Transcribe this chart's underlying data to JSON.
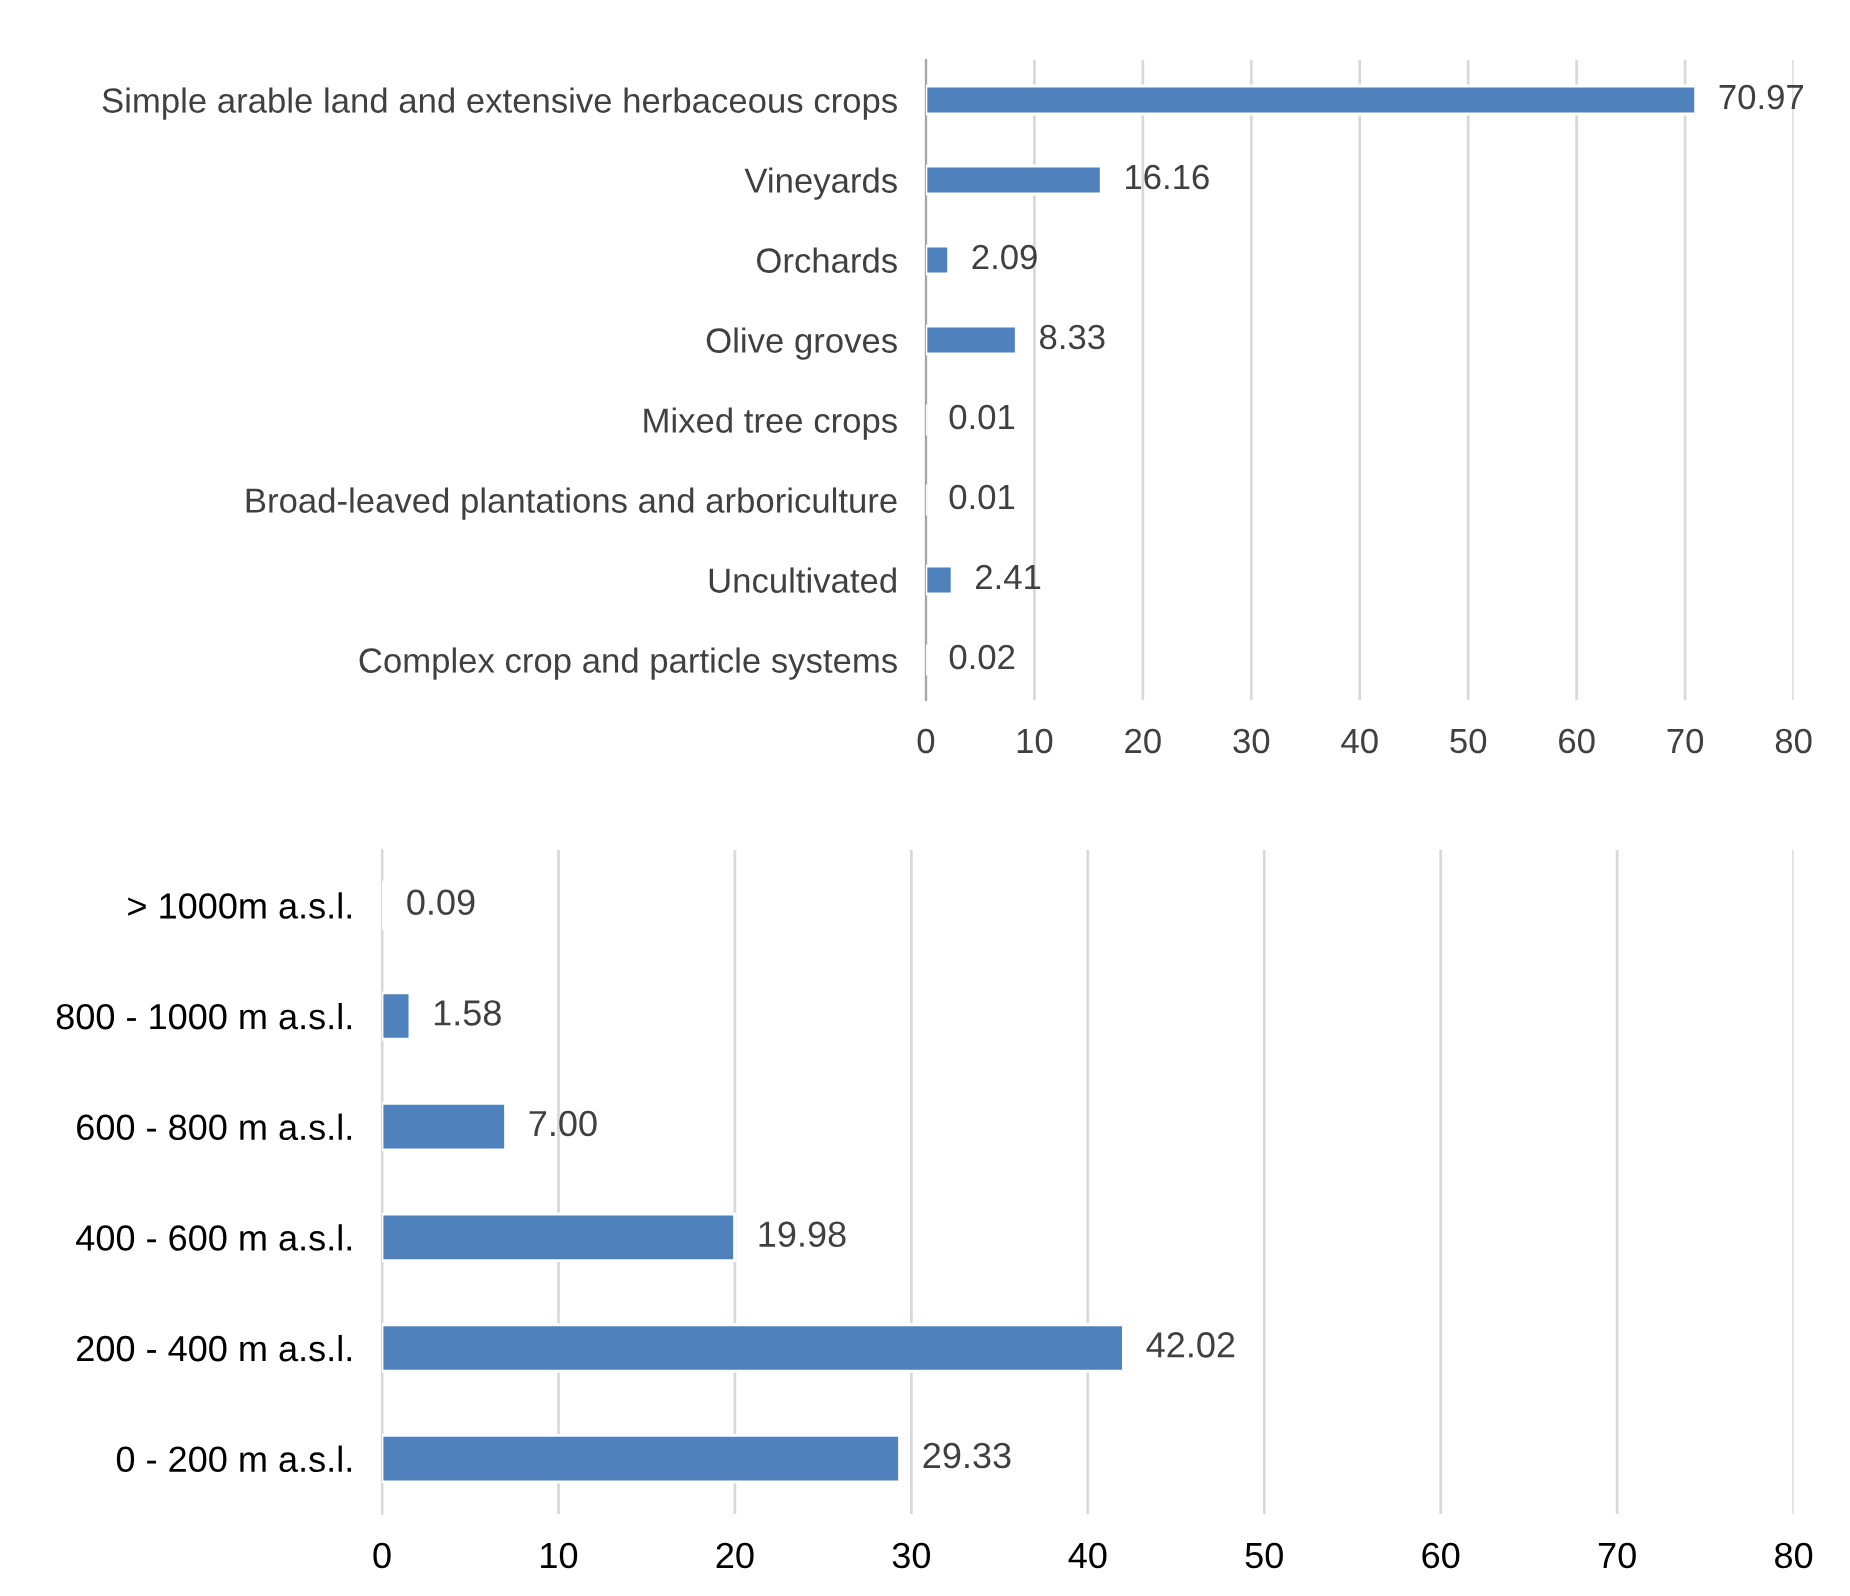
{
  "chart_data": [
    {
      "type": "bar",
      "orientation": "horizontal",
      "categories": [
        "Simple arable land and extensive herbaceous crops",
        "Vineyards",
        "Orchards",
        "Olive groves",
        "Mixed tree crops",
        "Broad-leaved plantations and arboriculture",
        "Uncultivated",
        "Complex crop and particle systems"
      ],
      "values": [
        70.97,
        16.16,
        2.09,
        8.33,
        0.01,
        0.01,
        2.41,
        0.02
      ],
      "value_labels": [
        "70.97",
        "16.16",
        "2.09",
        "8.33",
        "0.01",
        "0.01",
        "2.41",
        "0.02"
      ],
      "color": "#4f81bd",
      "xlim": [
        0,
        80
      ],
      "xticks": [
        0,
        10,
        20,
        30,
        40,
        50,
        60,
        70,
        80
      ],
      "grid": "x",
      "legend": false
    },
    {
      "type": "bar",
      "orientation": "horizontal",
      "categories": [
        "> 1000m a.s.l.",
        "800 - 1000 m a.s.l.",
        "600 - 800 m a.s.l.",
        "400 - 600 m a.s.l.",
        "200 - 400 m a.s.l.",
        "0 - 200 m a.s.l."
      ],
      "values": [
        0.09,
        1.58,
        7.0,
        19.98,
        42.02,
        29.33
      ],
      "value_labels": [
        "0.09",
        "1.58",
        "7.00",
        "19.98",
        "42.02",
        "29.33"
      ],
      "color": "#4f81bd",
      "xlim": [
        0,
        80
      ],
      "xticks": [
        0,
        10,
        20,
        30,
        40,
        50,
        60,
        70,
        80
      ],
      "grid": "x",
      "legend": false
    }
  ]
}
